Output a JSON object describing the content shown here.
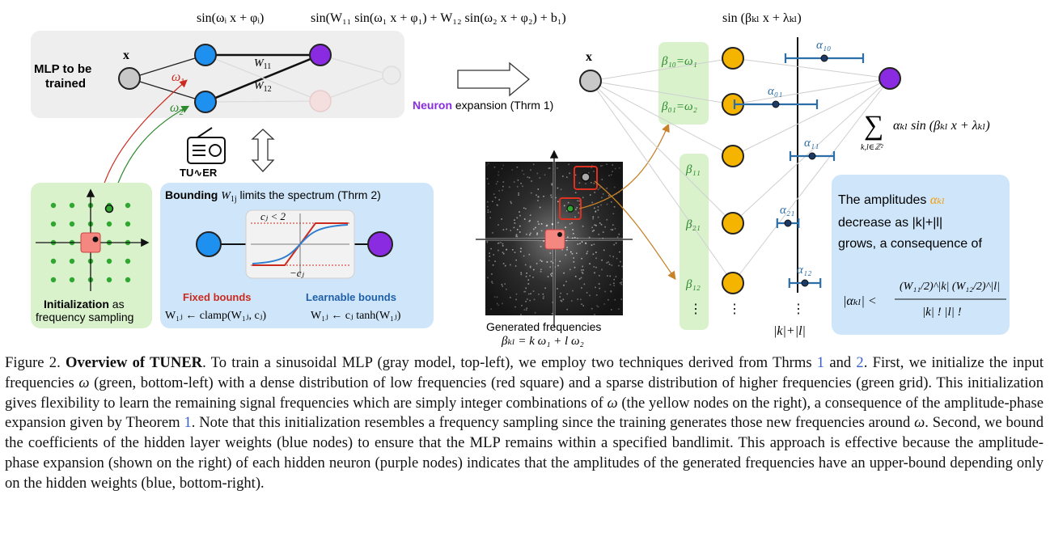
{
  "figure": {
    "mlp": {
      "box_label_line1": "MLP to be",
      "box_label_line2": "trained",
      "input_label": "x",
      "omega1": "ω",
      "omega1_sub": "1",
      "omega2": "ω",
      "omega2_sub": "2",
      "w11": "W",
      "w11_sub": "11",
      "w12": "W",
      "w12_sub": "12",
      "formula_first_layer": "sin(ωᵢ x + φᵢ)",
      "formula_hidden": "sin(W₁₁ sin(ω₁ x + φ₁) + W₁₂ sin(ω₂ x + φ₂) + b₁)"
    },
    "tuner_logo": "TU∿ER",
    "init_box": {
      "title_bold": "Initialization",
      "title_rest": " as",
      "line2": "frequency sampling"
    },
    "bounding_box": {
      "title_bold": "Bounding",
      "title_rest": " limits the spectrum (Thrm 2)",
      "title_var": "W",
      "title_var_sub": "1j",
      "bound_upper": "cⱼ < 2",
      "bound_lower": "−cⱼ",
      "fixed_label": "Fixed bounds",
      "fixed_formula": "W₁ⱼ ← clamp(W₁ⱼ, cⱼ)",
      "learn_label": "Learnable bounds",
      "learn_formula": "W₁ⱼ ← cⱼ tanh(W₁ⱼ)"
    },
    "expansion": {
      "neuron_word": "Neuron",
      "rest": " expansion (Thrm 1)",
      "input_label": "x",
      "formula_top": "sin (βₖₗ x + λₖₗ)",
      "sum_symbol": "∑",
      "sum_sub": "k,l∈ℤ²",
      "sum_term": "αₖₗ sin (βₖₗ x + λₖₗ)",
      "beta_labels": [
        "β₁₀=ω₁",
        "β₀₁=ω₂",
        "β₁₁",
        "β₂₁",
        "β₁₂",
        "⋮"
      ],
      "alpha_labels": [
        "α₁₀",
        "α₀₁",
        "α₁₁",
        "α₂₁",
        "α₁₂"
      ],
      "alpha_positions": [
        0.55,
        -0.45,
        0.3,
        -0.2,
        0.15
      ],
      "alpha_ranges": [
        0.8,
        0.85,
        0.45,
        0.22,
        0.32
      ],
      "vdots": "⋮",
      "axis_label": "|k|+|l|"
    },
    "spectrum": {
      "caption_line1": "Generated frequencies",
      "caption_line2": "βₖₗ = k ω₁ + l ω₂"
    },
    "amplitude_box": {
      "line1": "The amplitudes ",
      "line1_var": "αₖₗ",
      "line2": "decrease as |k|+|l|",
      "line3": "grows, a consequence of",
      "ineq_lhs": "|αₖₗ| <",
      "ineq_num": "(W₁₁/2)^|k| (W₁₂/2)^|l|",
      "ineq_den": "|k| ! |l| !"
    },
    "colors": {
      "gray_node": "#c8c8c8",
      "blue_node": "#1e90ef",
      "purple_node": "#8a2be2",
      "yellow_node": "#f5b400",
      "green_box": "#d9f2cc",
      "blue_box": "#cfe6fa",
      "gray_box": "#eeeeee",
      "red_arrow": "#cc2a1e",
      "green_arrow": "#2c8a2c",
      "orange_arrow": "#c8822a",
      "purple_text": "#8a2be2",
      "errorbar": "#2b6ea8"
    }
  },
  "caption": {
    "label": "Figure 2.",
    "title": "Overview of TUNER",
    "s1a": ". To train a sinusoidal MLP (gray model, top-left), we employ two techniques derived from Thrms ",
    "ref1": "1",
    "s1b": " and ",
    "ref2": "2",
    "s2": ". First, we initialize the input frequencies ",
    "omega": "ω",
    "s3": " (green, bottom-left) with a dense distribution of low frequencies (red square) and a sparse distribution of higher frequencies (green grid). This initialization gives flexibility to learn the remaining signal frequencies which are simply integer combinations of ",
    "s4": " (the yellow nodes on the right), a consequence of the amplitude-phase expansion given by Theorem ",
    "ref3": "1",
    "s5": ". Note that this initialization resembles a frequency sampling since the training generates those new frequencies around ",
    "s6": ". Second, we bound the coefficients of the hidden layer weights (blue nodes) to ensure that the MLP remains within a specified bandlimit. This approach is effective because the amplitude-phase expansion (shown on the right) of each hidden neuron (purple nodes) indicates that the amplitudes of the generated frequencies have an upper-bound depending only on the hidden weights (blue, bottom-right)."
  }
}
